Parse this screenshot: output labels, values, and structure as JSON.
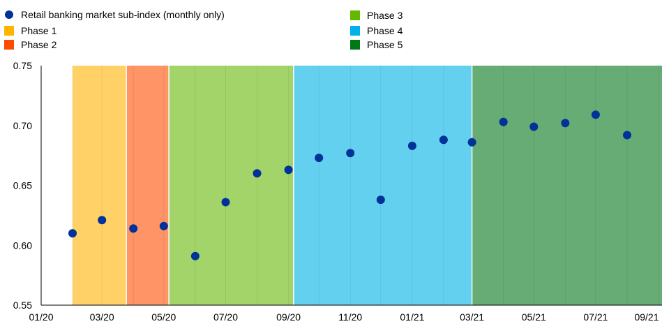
{
  "chart_data": {
    "type": "scatter",
    "x_axis": {
      "ticks": [
        "01/20",
        "03/20",
        "05/20",
        "07/20",
        "09/20",
        "11/20",
        "01/21",
        "03/21",
        "05/21",
        "07/21",
        "09/21"
      ]
    },
    "y_axis": {
      "ticks": [
        "0.55",
        "0.60",
        "0.65",
        "0.70",
        "0.75"
      ],
      "range": [
        0.55,
        0.75
      ]
    },
    "grid": "vertical",
    "legend_position": "top-left",
    "series": [
      {
        "name": "Retail banking market sub-index (monthly only)",
        "color": "#003299",
        "points": [
          {
            "x": "2020-02",
            "y": 0.61
          },
          {
            "x": "2020-03",
            "y": 0.621
          },
          {
            "x": "2020-04",
            "y": 0.614
          },
          {
            "x": "2020-05",
            "y": 0.616
          },
          {
            "x": "2020-06",
            "y": 0.591
          },
          {
            "x": "2020-07",
            "y": 0.636
          },
          {
            "x": "2020-08",
            "y": 0.66
          },
          {
            "x": "2020-09",
            "y": 0.663
          },
          {
            "x": "2020-10",
            "y": 0.673
          },
          {
            "x": "2020-11",
            "y": 0.677
          },
          {
            "x": "2020-12",
            "y": 0.638
          },
          {
            "x": "2021-01",
            "y": 0.683
          },
          {
            "x": "2021-02",
            "y": 0.688
          },
          {
            "x": "2021-03",
            "y": 0.686
          },
          {
            "x": "2021-04",
            "y": 0.703
          },
          {
            "x": "2021-05",
            "y": 0.699
          },
          {
            "x": "2021-06",
            "y": 0.702
          },
          {
            "x": "2021-07",
            "y": 0.709
          },
          {
            "x": "2021-08",
            "y": 0.692
          }
        ]
      }
    ],
    "phases": [
      {
        "name": "Phase 1",
        "color": "#FFB400",
        "band_color": "#FFD166",
        "start": "2020-02-01",
        "end": "2020-03-25"
      },
      {
        "name": "Phase 2",
        "color": "#FF4B00",
        "band_color": "#FF9466",
        "start": "2020-03-25",
        "end": "2020-05-06"
      },
      {
        "name": "Phase 3",
        "color": "#65B800",
        "band_color": "#A3D46A",
        "start": "2020-05-06",
        "end": "2020-09-06"
      },
      {
        "name": "Phase 4",
        "color": "#00B1EA",
        "band_color": "#64D0F0",
        "start": "2020-09-06",
        "end": "2021-03-01"
      },
      {
        "name": "Phase 5",
        "color": "#007816",
        "band_color": "#66AC74",
        "start": "2021-03-01",
        "end": "2021-09-30"
      }
    ]
  }
}
